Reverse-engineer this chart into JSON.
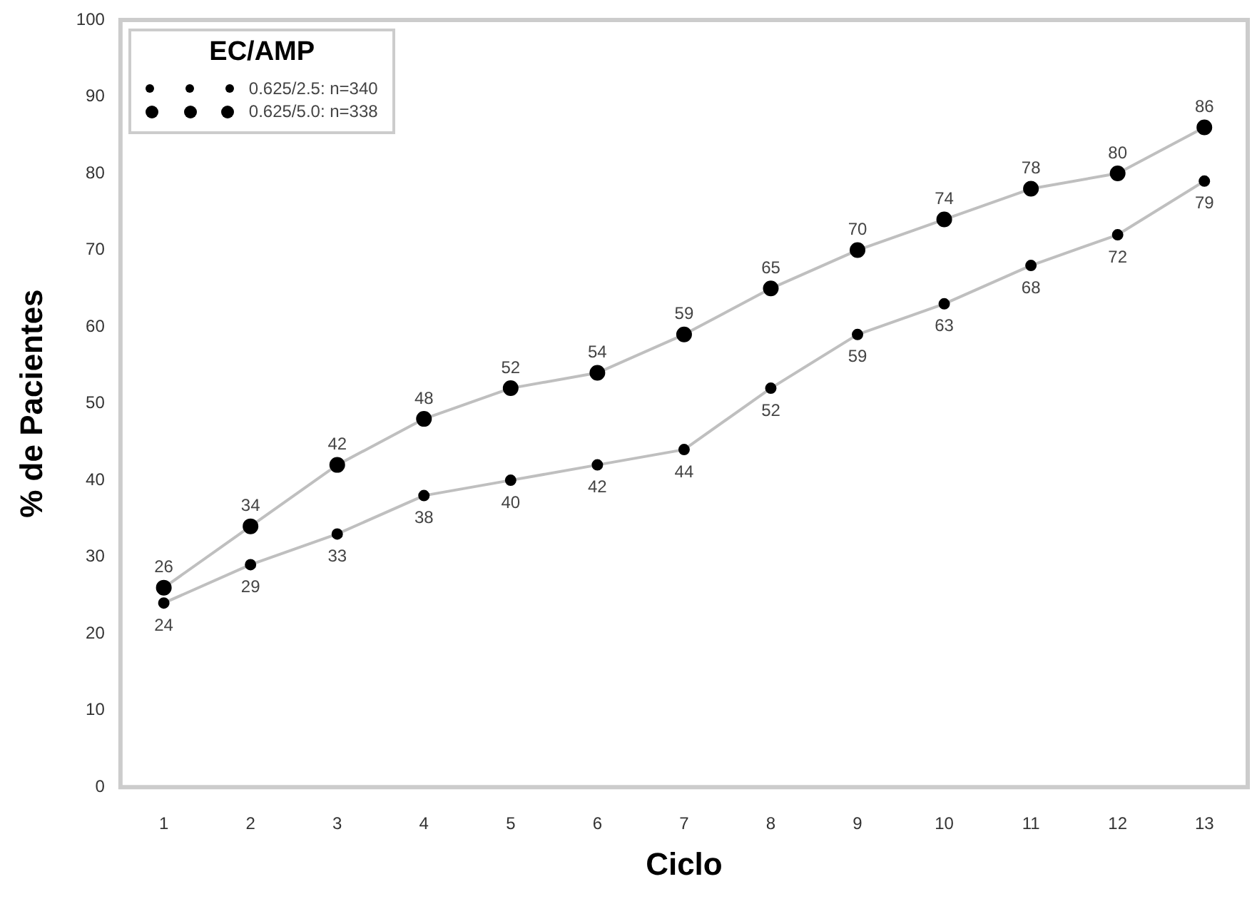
{
  "chart_data": {
    "type": "line",
    "xlabel": "Ciclo",
    "ylabel": "% de Pacientes",
    "legend_title": "EC/AMP",
    "categories": [
      "1",
      "2",
      "3",
      "4",
      "5",
      "6",
      "7",
      "8",
      "9",
      "10",
      "11",
      "12",
      "13"
    ],
    "series": [
      {
        "name": "0.625/2.5: n=340",
        "color": "#000000",
        "values": [
          24,
          29,
          33,
          38,
          40,
          42,
          44,
          52,
          59,
          63,
          68,
          72,
          79
        ]
      },
      {
        "name": "0.625/5.0: n=338",
        "color": "#000000",
        "values": [
          26,
          34,
          42,
          48,
          52,
          54,
          59,
          65,
          70,
          74,
          78,
          80,
          86
        ]
      }
    ],
    "ylim": [
      0,
      100
    ],
    "yticks": [
      0,
      10,
      20,
      30,
      40,
      50,
      60,
      70,
      80,
      90,
      100
    ],
    "grid": false,
    "legend": "top left",
    "marker": "circle",
    "line_style": "solid",
    "data_labels": true
  }
}
